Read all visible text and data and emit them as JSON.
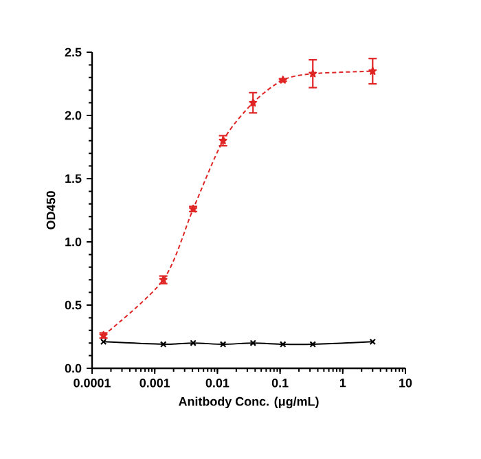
{
  "chart_data": {
    "type": "line",
    "xlabel": "Anitbody Conc. (μg/mL)",
    "ylabel": "OD450",
    "log": "x",
    "grid": false,
    "xlim": [
      0.0001,
      10
    ],
    "xticks": [
      0.0001,
      0.001,
      0.01,
      0.1,
      1,
      10
    ],
    "ylim": [
      0,
      2.5
    ],
    "yticks": [
      {
        "value": 0,
        "label": "0.0"
      },
      0.5,
      {
        "value": 1,
        "label": "1.0"
      },
      1.5,
      {
        "value": 2,
        "label": "2.0"
      },
      2.5
    ],
    "x": [
      0.000152,
      0.00137,
      0.0041,
      0.0123,
      0.037,
      0.111,
      0.333,
      3
    ],
    "series": [
      {
        "color": "#e02424",
        "values": [
          0.26,
          0.7,
          1.26,
          1.8,
          2.1,
          2.28,
          2.33,
          2.35
        ],
        "errors": [
          0.02,
          0.03,
          0.02,
          0.04,
          0.08,
          0.01,
          0.11,
          0.1
        ],
        "marker": "star",
        "line_style": "dashed"
      },
      {
        "color": "#000000",
        "values": [
          0.21,
          0.19,
          0.2,
          0.19,
          0.2,
          0.19,
          0.19,
          0.21
        ],
        "marker": "cross",
        "line_style": "solid"
      }
    ]
  }
}
